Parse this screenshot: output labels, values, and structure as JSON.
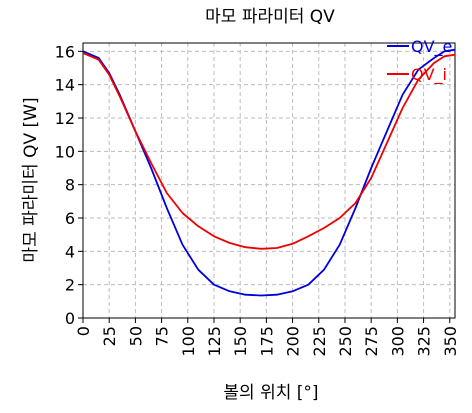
{
  "chart_data": {
    "type": "line",
    "title": "마모 파라미터 QV",
    "xlabel": "볼의 위치 [°]",
    "ylabel": "마모 파라미터 QV [W]",
    "xlim": [
      0,
      355
    ],
    "ylim": [
      0,
      16.5
    ],
    "xticks": [
      0,
      25,
      50,
      75,
      100,
      125,
      150,
      175,
      200,
      225,
      250,
      275,
      300,
      325,
      350
    ],
    "yticks": [
      0,
      2,
      4,
      6,
      8,
      10,
      12,
      14,
      16
    ],
    "grid": true,
    "legend_position": "top-right",
    "x": [
      0,
      15,
      25,
      35,
      50,
      65,
      80,
      95,
      110,
      125,
      140,
      155,
      170,
      185,
      200,
      215,
      230,
      245,
      260,
      275,
      290,
      305,
      320,
      335,
      345,
      355
    ],
    "series": [
      {
        "name": "QV_e",
        "color": "#0000dd",
        "values": [
          16.0,
          15.6,
          14.7,
          13.4,
          11.2,
          9.0,
          6.6,
          4.4,
          2.9,
          2.0,
          1.6,
          1.4,
          1.35,
          1.4,
          1.6,
          2.0,
          2.9,
          4.4,
          6.6,
          9.0,
          11.2,
          13.4,
          14.9,
          15.6,
          16.0,
          16.1
        ]
      },
      {
        "name": "QV_i",
        "color": "#ee0000",
        "values": [
          15.9,
          15.5,
          14.6,
          13.3,
          11.2,
          9.3,
          7.5,
          6.3,
          5.5,
          4.9,
          4.5,
          4.25,
          4.15,
          4.2,
          4.45,
          4.9,
          5.4,
          6.0,
          6.9,
          8.4,
          10.5,
          12.6,
          14.3,
          15.3,
          15.7,
          15.8
        ]
      }
    ]
  }
}
